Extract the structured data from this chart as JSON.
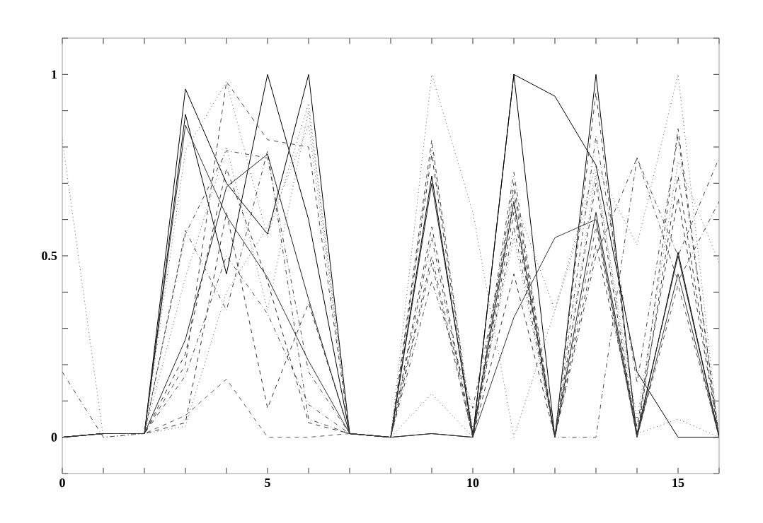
{
  "chart_data": {
    "type": "line",
    "x": [
      0,
      1,
      2,
      3,
      4,
      5,
      6,
      7,
      8,
      9,
      10,
      11,
      12,
      13,
      14,
      15,
      16
    ],
    "xlim": [
      0,
      16
    ],
    "ylim": [
      -0.1,
      1.1
    ],
    "xticks": [
      0,
      {
        "value": 1,
        "label": null
      },
      {
        "value": 2,
        "label": null
      },
      {
        "value": 3,
        "label": null
      },
      {
        "value": 4,
        "label": null
      },
      5,
      {
        "value": 6,
        "label": null
      },
      {
        "value": 7,
        "label": null
      },
      {
        "value": 8,
        "label": null
      },
      {
        "value": 9,
        "label": null
      },
      10,
      {
        "value": 11,
        "label": null
      },
      {
        "value": 12,
        "label": null
      },
      {
        "value": 13,
        "label": null
      },
      {
        "value": 14,
        "label": null
      },
      15,
      {
        "value": 16,
        "label": null
      }
    ],
    "yticks": [
      {
        "value": -0.1,
        "label": null
      },
      0,
      {
        "value": 0.1,
        "label": null
      },
      {
        "value": 0.2,
        "label": null
      },
      {
        "value": 0.3,
        "label": null
      },
      {
        "value": 0.4,
        "label": null
      },
      0.5,
      {
        "value": 0.6,
        "label": null
      },
      {
        "value": 0.7,
        "label": null
      },
      {
        "value": 0.8,
        "label": null
      },
      {
        "value": 0.9,
        "label": null
      },
      1,
      {
        "value": 1.1,
        "label": null
      }
    ],
    "grid": false,
    "marker": "none",
    "series": [
      {
        "color": "#000000",
        "line_style": "solid",
        "values": [
          0,
          0.01,
          0.01,
          0.96,
          0.7,
          0.56,
          1.0,
          0.01,
          0,
          0.01,
          0,
          1.0,
          0,
          1.0,
          0,
          0.51,
          0
        ]
      },
      {
        "color": "#000000",
        "line_style": "solid",
        "values": [
          0,
          0.01,
          0.01,
          0.89,
          0.45,
          1.0,
          0.6,
          0.01,
          0,
          0.72,
          0,
          1.0,
          0.94,
          0.75,
          0.18,
          0,
          0
        ]
      },
      {
        "color": "#333333",
        "line_style": "solid",
        "values": [
          0,
          0.01,
          0.01,
          0.86,
          0.61,
          0.44,
          0.21,
          0.01,
          0,
          0.01,
          0,
          0.33,
          0.55,
          0.6,
          0,
          0.45,
          0
        ]
      },
      {
        "color": "#555555",
        "line_style": "dotted",
        "values": [
          0.82,
          0,
          0.01,
          0.79,
          0.98,
          0.55,
          0.92,
          0.01,
          0,
          1.0,
          0.62,
          0,
          0.35,
          0.75,
          0.53,
          1.0,
          0
        ]
      },
      {
        "color": "#444444",
        "line_style": "dashed",
        "values": [
          0,
          0.01,
          0.01,
          0.2,
          0.98,
          0.82,
          0.8,
          0.01,
          0,
          0.82,
          0,
          0.7,
          0,
          0.95,
          0,
          0.85,
          0
        ]
      },
      {
        "color": "#444444",
        "line_style": "dashdotted",
        "values": [
          0.18,
          0,
          0.01,
          0.57,
          0.35,
          0.79,
          0.05,
          0.01,
          0,
          0.55,
          0,
          0.73,
          0,
          0.5,
          0.77,
          0.5,
          0.77
        ]
      },
      {
        "color": "#555555",
        "line_style": "dashed",
        "values": [
          0,
          0.01,
          0.01,
          0.06,
          0.16,
          0,
          0,
          0.01,
          0,
          0.48,
          0,
          0.68,
          0,
          0.58,
          0,
          0.42,
          0
        ]
      },
      {
        "color": "#444444",
        "line_style": "dashdotted",
        "values": [
          0,
          0.01,
          0.01,
          0.56,
          0.79,
          0.77,
          0.18,
          0.01,
          0,
          0.43,
          0.08,
          0.64,
          0,
          0.83,
          0.15,
          0.83,
          0
        ]
      },
      {
        "color": "#555555",
        "line_style": "dotted",
        "values": [
          0,
          0.01,
          0.01,
          0.44,
          0.8,
          0.35,
          0.9,
          0.01,
          0,
          0.12,
          0,
          0.66,
          0.35,
          0.72,
          0.05,
          0.76,
          0.48
        ]
      },
      {
        "color": "#333333",
        "line_style": "dashed",
        "values": [
          0,
          0.01,
          0.01,
          0.04,
          0.62,
          0.08,
          0.37,
          0.01,
          0,
          0.58,
          0,
          0.62,
          0,
          0.53,
          0.03,
          0.66,
          0
        ]
      },
      {
        "color": "#222222",
        "line_style": "solid",
        "values": [
          0,
          0.01,
          0.01,
          0.27,
          0.69,
          0.78,
          0.38,
          0.01,
          0,
          0.7,
          0.01,
          0.65,
          0,
          0.62,
          0.01,
          0.5,
          0
        ]
      },
      {
        "color": "#444444",
        "line_style": "dashdotted",
        "values": [
          0,
          0.01,
          0.01,
          0.17,
          0.5,
          0.34,
          0.09,
          0.01,
          0,
          0.5,
          0,
          0.58,
          0,
          0,
          0.77,
          0.43,
          0.65
        ]
      },
      {
        "color": "#555555",
        "line_style": "dotted",
        "values": [
          0,
          0.01,
          0.01,
          0.03,
          0.4,
          0.58,
          0.86,
          0.01,
          0,
          0.8,
          0.02,
          0.55,
          0,
          0.73,
          0.01,
          0.05,
          0
        ]
      },
      {
        "color": "#333333",
        "line_style": "dashed",
        "values": [
          0,
          0.01,
          0.01,
          0.23,
          0.74,
          0.43,
          0.04,
          0.01,
          0,
          0.78,
          0,
          0.45,
          0,
          0.7,
          0,
          0.72,
          0
        ]
      }
    ]
  }
}
